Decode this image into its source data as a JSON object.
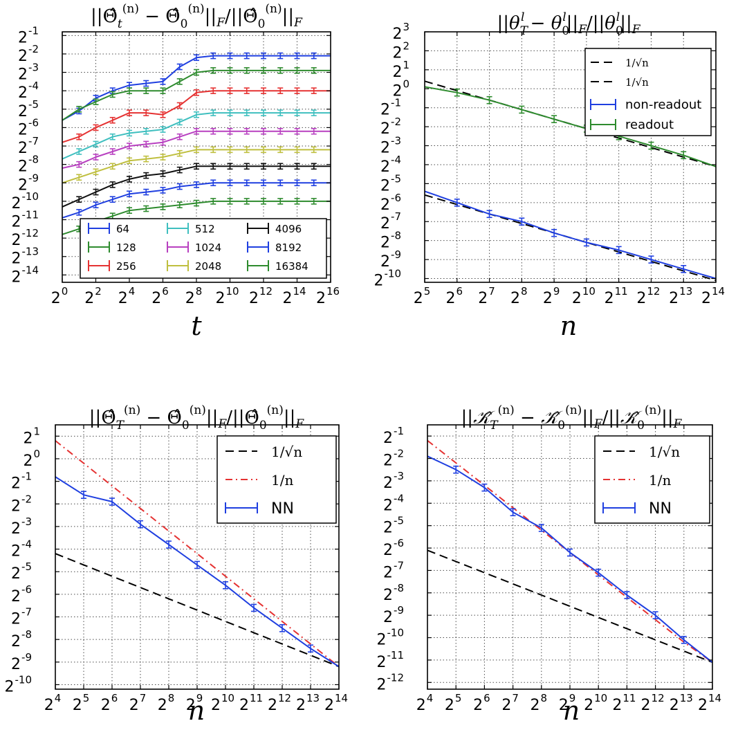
{
  "chart_data": [
    {
      "type": "line",
      "id": "p1",
      "title": "||Θ̂t(n) − Θ̂0(n)||F / ||Θ̂0(n)||F",
      "xlabel": "t",
      "ylabel": "",
      "x_scale": "log2",
      "y_scale": "log2",
      "xlim_exp": [
        0,
        16
      ],
      "ylim_exp": [
        -14.4,
        -0.8
      ],
      "x_tick_exps": [
        0,
        2,
        4,
        6,
        8,
        10,
        12,
        14,
        16
      ],
      "y_tick_exps": [
        -1,
        -2,
        -3,
        -4,
        -5,
        -6,
        -7,
        -8,
        -9,
        -10,
        -11,
        -12,
        -13,
        -14
      ],
      "grid": true,
      "legend": {
        "placement": "lower-right",
        "columns": 3
      },
      "x_exp": [
        0,
        1,
        2,
        3,
        4,
        5,
        6,
        7,
        8,
        9,
        10,
        11,
        12,
        13,
        14,
        15,
        16
      ],
      "series": [
        {
          "name": "64",
          "color": "#1f3fe0",
          "y_exp": [
            -5.6,
            -5.1,
            -4.4,
            -4.0,
            -3.7,
            -3.6,
            -3.5,
            -2.7,
            -2.2,
            -2.1,
            -2.1,
            -2.1,
            -2.1,
            -2.1,
            -2.1,
            -2.1,
            -2.1
          ]
        },
        {
          "name": "128",
          "color": "#2e8b2e",
          "y_exp": [
            -5.6,
            -5.0,
            -4.6,
            -4.2,
            -4.0,
            -4.0,
            -4.0,
            -3.5,
            -3.0,
            -2.9,
            -2.9,
            -2.9,
            -2.9,
            -2.9,
            -2.9,
            -2.9,
            -2.9
          ]
        },
        {
          "name": "256",
          "color": "#e53232",
          "y_exp": [
            -6.8,
            -6.5,
            -6.0,
            -5.6,
            -5.2,
            -5.2,
            -5.3,
            -4.8,
            -4.1,
            -4.0,
            -4.0,
            -4.0,
            -4.0,
            -4.0,
            -4.0,
            -4.0,
            -4.0
          ]
        },
        {
          "name": "512",
          "color": "#3fbfbf",
          "y_exp": [
            -7.7,
            -7.3,
            -6.9,
            -6.5,
            -6.3,
            -6.2,
            -6.1,
            -5.7,
            -5.3,
            -5.2,
            -5.2,
            -5.2,
            -5.2,
            -5.2,
            -5.2,
            -5.2,
            -5.2
          ]
        },
        {
          "name": "1024",
          "color": "#b840c0",
          "y_exp": [
            -8.2,
            -8.0,
            -7.6,
            -7.3,
            -7.0,
            -6.9,
            -6.8,
            -6.5,
            -6.2,
            -6.2,
            -6.2,
            -6.2,
            -6.2,
            -6.2,
            -6.2,
            -6.2,
            -6.2
          ]
        },
        {
          "name": "2048",
          "color": "#bfbf3f",
          "y_exp": [
            -9.0,
            -8.7,
            -8.4,
            -8.1,
            -7.8,
            -7.7,
            -7.6,
            -7.4,
            -7.2,
            -7.2,
            -7.2,
            -7.2,
            -7.2,
            -7.2,
            -7.2,
            -7.2,
            -7.2
          ]
        },
        {
          "name": "4096",
          "color": "#111111",
          "y_exp": [
            -10.3,
            -9.9,
            -9.5,
            -9.1,
            -8.8,
            -8.6,
            -8.5,
            -8.3,
            -8.1,
            -8.1,
            -8.1,
            -8.1,
            -8.1,
            -8.1,
            -8.1,
            -8.1,
            -8.1
          ]
        },
        {
          "name": "8192",
          "color": "#1f3fe0",
          "y_exp": [
            -10.9,
            -10.6,
            -10.2,
            -9.9,
            -9.6,
            -9.5,
            -9.4,
            -9.2,
            -9.1,
            -9.0,
            -9.0,
            -9.0,
            -9.0,
            -9.0,
            -9.0,
            -9.0,
            -9.0
          ]
        },
        {
          "name": "16384",
          "color": "#2e8b2e",
          "y_exp": [
            -11.8,
            -11.5,
            -11.1,
            -10.8,
            -10.5,
            -10.4,
            -10.3,
            -10.2,
            -10.1,
            -10.0,
            -10.0,
            -10.0,
            -10.0,
            -10.0,
            -10.0,
            -10.0,
            -10.0
          ]
        }
      ]
    },
    {
      "type": "line",
      "id": "p2",
      "title": "||θTl − θ0l||F / ||θ0l||F",
      "xlabel": "n",
      "ylabel": "",
      "x_scale": "log2",
      "y_scale": "log2",
      "xlim_exp": [
        5,
        14
      ],
      "ylim_exp": [
        -10.2,
        3.0
      ],
      "x_tick_exps": [
        5,
        6,
        7,
        8,
        9,
        10,
        11,
        12,
        13,
        14
      ],
      "y_tick_exps": [
        3,
        2,
        1,
        0,
        -1,
        -2,
        -3,
        -4,
        -5,
        -6,
        -7,
        -8,
        -9,
        -10
      ],
      "grid": true,
      "legend": {
        "placement": "top-right"
      },
      "x_exp": [
        5,
        6,
        7,
        8,
        9,
        10,
        11,
        12,
        13,
        14
      ],
      "series": [
        {
          "name": "1/√n",
          "color": "#000000",
          "dash": "dash",
          "y_exp": [
            0.4,
            -0.1,
            -0.6,
            -1.1,
            -1.6,
            -2.1,
            -2.6,
            -3.1,
            -3.6,
            -4.1
          ]
        },
        {
          "name": "1/√n",
          "color": "#000000",
          "dash": "dash",
          "y_exp": [
            -5.6,
            -6.1,
            -6.6,
            -7.1,
            -7.6,
            -8.1,
            -8.6,
            -9.1,
            -9.6,
            -10.1
          ]
        },
        {
          "name": "non-readout",
          "color": "#1f3fe0",
          "errorbars": true,
          "y_exp": [
            -5.4,
            -6.0,
            -6.6,
            -7.0,
            -7.6,
            -8.1,
            -8.5,
            -9.0,
            -9.5,
            -10.0
          ]
        },
        {
          "name": "readout",
          "color": "#2e8b2e",
          "errorbars": true,
          "y_exp": [
            0.1,
            -0.2,
            -0.6,
            -1.1,
            -1.6,
            -2.1,
            -2.5,
            -3.0,
            -3.5,
            -4.1
          ]
        }
      ]
    },
    {
      "type": "line",
      "id": "p3",
      "title": "||Θ̂T(n) − Θ̂0(n)||F / ||Θ̂0(n)||F",
      "xlabel": "n",
      "ylabel": "",
      "x_scale": "log2",
      "y_scale": "log2",
      "xlim_exp": [
        4,
        14
      ],
      "ylim_exp": [
        -10.2,
        1.5
      ],
      "x_tick_exps": [
        4,
        5,
        6,
        7,
        8,
        9,
        10,
        11,
        12,
        13,
        14
      ],
      "y_tick_exps": [
        1,
        0,
        -1,
        -2,
        -3,
        -4,
        -5,
        -6,
        -7,
        -8,
        -9,
        -10
      ],
      "grid": true,
      "legend": {
        "placement": "top-right"
      },
      "x_exp": [
        4,
        5,
        6,
        7,
        8,
        9,
        10,
        11,
        12,
        13,
        14
      ],
      "series": [
        {
          "name": "1/√n",
          "color": "#000000",
          "dash": "dash",
          "y_exp": [
            -4.2,
            -4.7,
            -5.2,
            -5.7,
            -6.2,
            -6.7,
            -7.2,
            -7.7,
            -8.2,
            -8.7,
            -9.2
          ]
        },
        {
          "name": "1/n",
          "color": "#e53232",
          "dash": "dashdot",
          "y_exp": [
            0.8,
            -0.2,
            -1.2,
            -2.2,
            -3.2,
            -4.2,
            -5.2,
            -6.2,
            -7.2,
            -8.2,
            -9.2
          ]
        },
        {
          "name": "NN",
          "color": "#1f3fe0",
          "errorbars": true,
          "y_exp": [
            -0.8,
            -1.6,
            -1.9,
            -2.9,
            -3.8,
            -4.7,
            -5.6,
            -6.6,
            -7.5,
            -8.4,
            -9.2
          ]
        }
      ]
    },
    {
      "type": "line",
      "id": "p4",
      "title": "||𝒦̂T(n) − 𝒦̂0(n)||F / ||𝒦̂0(n)||F",
      "xlabel": "n",
      "ylabel": "",
      "x_scale": "log2",
      "y_scale": "log2",
      "xlim_exp": [
        4,
        14
      ],
      "ylim_exp": [
        -12.3,
        -0.5
      ],
      "x_tick_exps": [
        4,
        5,
        6,
        7,
        8,
        9,
        10,
        11,
        12,
        13,
        14
      ],
      "y_tick_exps": [
        -1,
        -2,
        -3,
        -4,
        -5,
        -6,
        -7,
        -8,
        -9,
        -10,
        -11,
        -12
      ],
      "grid": true,
      "legend": {
        "placement": "top-right"
      },
      "x_exp": [
        4,
        5,
        6,
        7,
        8,
        9,
        10,
        11,
        12,
        13,
        14
      ],
      "series": [
        {
          "name": "1/√n",
          "color": "#000000",
          "dash": "dash",
          "y_exp": [
            -6.1,
            -6.6,
            -7.1,
            -7.6,
            -8.1,
            -8.6,
            -9.1,
            -9.6,
            -10.1,
            -10.6,
            -11.1
          ]
        },
        {
          "name": "1/n",
          "color": "#e53232",
          "dash": "dashdot",
          "y_exp": [
            -1.2,
            -2.2,
            -3.2,
            -4.2,
            -5.2,
            -6.2,
            -7.2,
            -8.2,
            -9.2,
            -10.2,
            -11.1
          ]
        },
        {
          "name": "NN",
          "color": "#1f3fe0",
          "errorbars": true,
          "y_exp": [
            -1.9,
            -2.5,
            -3.3,
            -4.4,
            -5.1,
            -6.2,
            -7.1,
            -8.1,
            -9.0,
            -10.1,
            -11.1
          ]
        }
      ]
    }
  ]
}
